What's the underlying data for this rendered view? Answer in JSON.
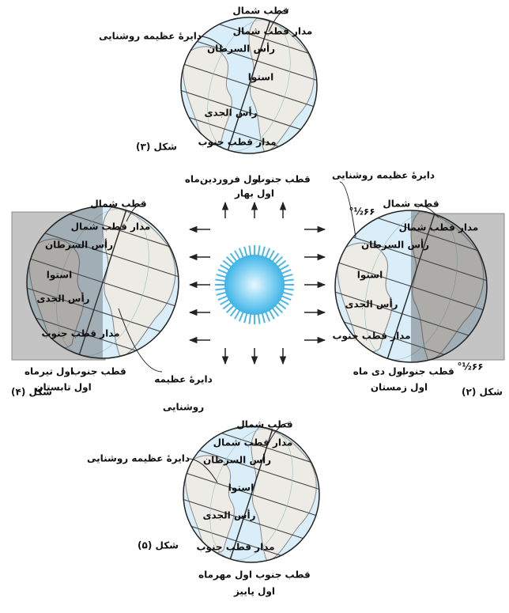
{
  "figures": [
    {
      "figure": "شکل (۳)",
      "date": "اول فروردین‌ماه",
      "season": "اول بهار",
      "north_pole": "قطب شمال",
      "south_pole": "قطب جنوب",
      "illumination_circle": [
        "دایرهٔ عظیمه روشنایی"
      ],
      "arctic_circle": "مدار قطب شمال",
      "tropic_of_cancer": "رأس السرطان",
      "equator": "استوا",
      "tropic_of_capricorn": "رأس الجدی",
      "antarctic_circle": "مدار قطب جنوب"
    },
    {
      "figure": "شکل (۲)",
      "date": "اول دی ماه",
      "season": "اول زمستان",
      "north_pole": "قطب شمال",
      "south_pole": "قطب جنوب",
      "illumination_circle": [
        "دایرهٔ عظیمه روشنایی"
      ],
      "tilt_angles": [
        "۶۶½°",
        "۶۶½°"
      ],
      "arctic_circle": "مدار قطب شمال",
      "tropic_of_cancer": "رأس السرطان",
      "equator": "استوا",
      "tropic_of_capricorn": "رأس الجدی",
      "antarctic_circle": "مدار قطب جنوب"
    },
    {
      "figure": "شکل (۴)",
      "date": "اول تیرماه",
      "season": "اول تابستان",
      "north_pole": "قطب شمال",
      "south_pole": "قطب جنوب",
      "illumination_circle": [
        "دایرهٔ عظیمه",
        "روشنایی"
      ],
      "arctic_circle": "مدار قطب شمال",
      "tropic_of_cancer": "رأس السرطان",
      "equator": "استوا",
      "tropic_of_capricorn": "رأس الجدی",
      "antarctic_circle": "مدار قطب جنوب"
    },
    {
      "figure": "شکل (۵)",
      "date": "اول مهرماه",
      "season": "اول پاییز",
      "north_pole": "قطب شمال",
      "south_pole": "قطب جنوب",
      "illumination_circle": [
        "دایرهٔ عظیمه روشنایی"
      ],
      "arctic_circle": "مدار قطب شمال",
      "tropic_of_cancer": "رأس السرطان",
      "equator": "استوا",
      "tropic_of_capricorn": "رأس الجدی",
      "antarctic_circle": "مدار قطب جنوب"
    }
  ]
}
